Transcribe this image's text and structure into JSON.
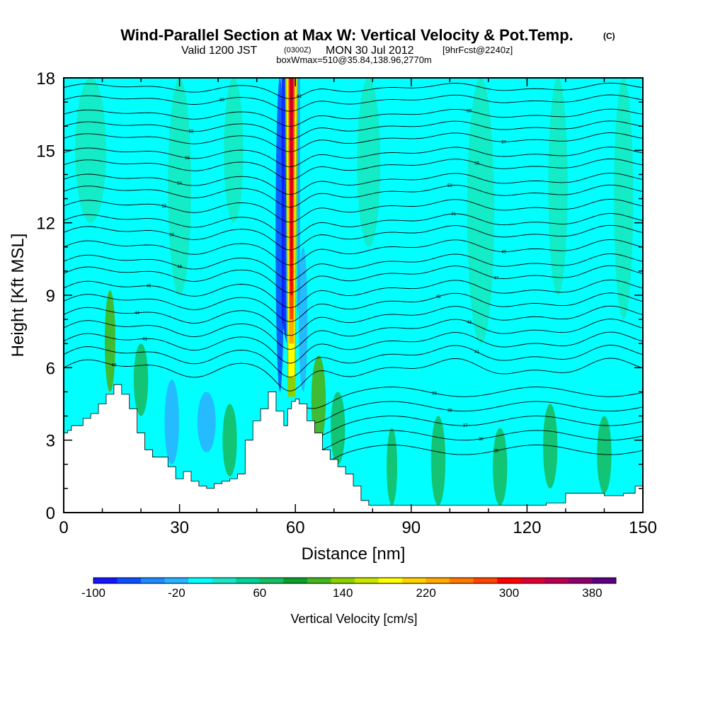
{
  "chart_data": {
    "type": "heatmap",
    "title": "Wind-Parallel Section at Max W: Vertical Velocity & Pot.Temp.",
    "title_mark": "(C)",
    "subtitle": {
      "valid": "Valid 1200 JST",
      "utc": "(0300Z)",
      "date": "MON 30 Jul 2012",
      "forecast": "[9hrFcst@2240z]"
    },
    "subtitle2": "boxWmax=510@35.84,138.96,2770m",
    "xlabel": "Distance [nm]",
    "ylabel": "Height [Kft MSL]",
    "xlim": [
      0,
      150
    ],
    "ylim": [
      0,
      18
    ],
    "x_ticks": [
      "0",
      "30",
      "60",
      "90",
      "120",
      "150"
    ],
    "y_ticks": [
      "0",
      "3",
      "6",
      "9",
      "12",
      "15",
      "18"
    ],
    "colorbar": {
      "title": "Vertical Velocity [cm/s]",
      "labels": [
        "-100",
        "-20",
        "60",
        "140",
        "220",
        "300",
        "380"
      ],
      "colors": [
        "#1414ff",
        "#0a50ff",
        "#1e8cff",
        "#28b4ff",
        "#00ffff",
        "#19e6c8",
        "#00d296",
        "#14be64",
        "#0aa028",
        "#46b41e",
        "#8cd200",
        "#c8e600",
        "#ffff00",
        "#ffd200",
        "#ffaa00",
        "#ff7800",
        "#ff4600",
        "#ff0000",
        "#dc0032",
        "#b40050",
        "#8c006e",
        "#5a0082"
      ]
    },
    "max_updraft": {
      "x": 59,
      "y_range": [
        8.0,
        18.0
      ],
      "peak_cms": 510
    },
    "terrain": {
      "x": [
        0,
        1,
        2,
        5,
        7,
        9,
        11,
        13,
        15,
        17,
        19,
        21,
        23,
        25,
        27,
        29,
        31,
        33,
        35,
        37,
        39,
        41,
        43,
        45,
        47,
        49,
        51,
        53,
        55,
        57,
        58,
        59,
        60,
        61,
        63,
        65,
        67,
        69,
        71,
        73,
        75,
        77,
        79,
        81,
        85,
        90,
        95,
        100,
        105,
        110,
        115,
        120,
        125,
        130,
        135,
        140,
        145,
        148,
        150
      ],
      "y": [
        3.3,
        3.4,
        3.6,
        3.9,
        4.1,
        4.5,
        4.9,
        5.3,
        4.9,
        4.3,
        3.3,
        2.6,
        2.3,
        2.3,
        1.9,
        1.4,
        1.7,
        1.3,
        1.1,
        1.0,
        1.2,
        1.3,
        1.4,
        1.6,
        3.0,
        3.8,
        4.3,
        5.0,
        4.2,
        3.6,
        4.3,
        4.6,
        4.7,
        4.5,
        3.8,
        3.3,
        2.6,
        2.2,
        1.9,
        1.6,
        1.1,
        0.5,
        0.3,
        0.3,
        0.3,
        0.3,
        0.3,
        0.3,
        0.3,
        0.3,
        0.3,
        0.3,
        0.4,
        0.8,
        0.8,
        0.7,
        0.8,
        1.1,
        1.3
      ]
    },
    "isentropes": [
      {
        "label": "40",
        "base": 6.0
      },
      {
        "label": "41",
        "base": 6.55
      },
      {
        "label": "41",
        "base": 7.1
      },
      {
        "label": "43",
        "base": 7.65
      },
      {
        "label": "44",
        "base": 8.2
      },
      {
        "label": "45",
        "base": 8.75
      },
      {
        "label": "46",
        "base": 9.3
      },
      {
        "label": "47",
        "base": 9.9
      },
      {
        "label": "48",
        "base": 10.4
      },
      {
        "label": "49",
        "base": 11.0
      },
      {
        "label": "50",
        "base": 11.6
      },
      {
        "label": "51",
        "base": 12.1
      },
      {
        "label": "52",
        "base": 12.7
      },
      {
        "label": "53",
        "base": 13.3
      },
      {
        "label": "54",
        "base": 13.8
      },
      {
        "label": "55",
        "base": 14.4
      },
      {
        "label": "56",
        "base": 14.9
      },
      {
        "label": "57",
        "base": 15.5
      },
      {
        "label": "58",
        "base": 16.0
      },
      {
        "label": "59",
        "base": 16.5
      },
      {
        "label": "60",
        "base": 17.1
      },
      {
        "label": "61",
        "base": 17.6
      }
    ],
    "low_isentropes": [
      {
        "label": "35",
        "base": 2.6
      },
      {
        "label": "36",
        "base": 3.2
      },
      {
        "label": "37",
        "base": 3.8
      },
      {
        "label": "38",
        "base": 4.4
      },
      {
        "label": "39",
        "base": 5.0
      }
    ],
    "shading": {
      "background_cms": 0,
      "streaks": [
        {
          "x": 12,
          "y_bottom": 5.0,
          "y_top": 9.2,
          "value": 80,
          "width": 2
        },
        {
          "x": 20,
          "y_bottom": 4.0,
          "y_top": 7.0,
          "value": 45,
          "width": 3
        },
        {
          "x": 28,
          "y_bottom": 2.0,
          "y_top": 5.5,
          "value": -30,
          "width": 3
        },
        {
          "x": 37,
          "y_bottom": 2.5,
          "y_top": 5.0,
          "value": -30,
          "width": 4
        },
        {
          "x": 43,
          "y_bottom": 1.5,
          "y_top": 4.5,
          "value": 45,
          "width": 3
        },
        {
          "x": 56,
          "y_bottom": 5.0,
          "y_top": 18.0,
          "value": -80,
          "width": 1.5
        },
        {
          "x": 62,
          "y_bottom": 5.0,
          "y_top": 11.0,
          "value": -40,
          "width": 1.5
        },
        {
          "x": 66,
          "y_bottom": 2.8,
          "y_top": 6.5,
          "value": 80,
          "width": 3
        },
        {
          "x": 71,
          "y_bottom": 2.0,
          "y_top": 5.0,
          "value": 45,
          "width": 3
        },
        {
          "x": 85,
          "y_bottom": 0.3,
          "y_top": 3.5,
          "value": 45,
          "width": 2
        },
        {
          "x": 97,
          "y_bottom": 0.3,
          "y_top": 4.0,
          "value": 45,
          "width": 3
        },
        {
          "x": 113,
          "y_bottom": 0.3,
          "y_top": 3.5,
          "value": 45,
          "width": 3
        },
        {
          "x": 126,
          "y_bottom": 1.0,
          "y_top": 4.5,
          "value": 45,
          "width": 3
        },
        {
          "x": 140,
          "y_bottom": 0.8,
          "y_top": 4.0,
          "value": 45,
          "width": 3
        }
      ],
      "upper_bands": [
        {
          "x": 7,
          "y_bottom": 12.0,
          "y_top": 18.0,
          "value": 30,
          "width": 8
        },
        {
          "x": 30,
          "y_bottom": 9.0,
          "y_top": 18.0,
          "value": 30,
          "width": 6
        },
        {
          "x": 44,
          "y_bottom": 12.0,
          "y_top": 18.0,
          "value": 30,
          "width": 5
        },
        {
          "x": 79,
          "y_bottom": 11.0,
          "y_top": 18.0,
          "value": 30,
          "width": 6
        },
        {
          "x": 108,
          "y_bottom": 7.0,
          "y_top": 18.0,
          "value": 30,
          "width": 7
        },
        {
          "x": 128,
          "y_bottom": 9.0,
          "y_top": 18.0,
          "value": 30,
          "width": 5
        },
        {
          "x": 145,
          "y_bottom": 8.0,
          "y_top": 18.0,
          "value": 30,
          "width": 5
        }
      ]
    }
  }
}
